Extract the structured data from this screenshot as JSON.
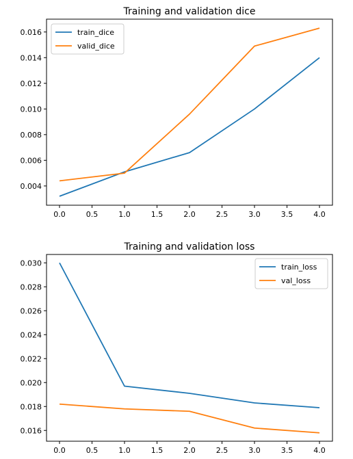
{
  "chart_data": [
    {
      "type": "line",
      "title": "Training and validation dice",
      "xlabel": "",
      "ylabel": "",
      "x": [
        0,
        1,
        2,
        3,
        4
      ],
      "xlim": [
        -0.2,
        4.2
      ],
      "ylim": [
        0.0025,
        0.017
      ],
      "xticks": [
        0.0,
        0.5,
        1.0,
        1.5,
        2.0,
        2.5,
        3.0,
        3.5,
        4.0
      ],
      "xtick_labels": [
        "0.0",
        "0.5",
        "1.0",
        "1.5",
        "2.0",
        "2.5",
        "3.0",
        "3.5",
        "4.0"
      ],
      "yticks": [
        0.004,
        0.006,
        0.008,
        0.01,
        0.012,
        0.014,
        0.016
      ],
      "ytick_labels": [
        "0.004",
        "0.006",
        "0.008",
        "0.010",
        "0.012",
        "0.014",
        "0.016"
      ],
      "grid": false,
      "legend_position": "top-left",
      "series": [
        {
          "name": "train_dice",
          "color": "#1f77b4",
          "values": [
            0.0032,
            0.0051,
            0.0066,
            0.01,
            0.014
          ]
        },
        {
          "name": "valid_dice",
          "color": "#ff7f0e",
          "values": [
            0.0044,
            0.005,
            0.0096,
            0.0149,
            0.0163
          ]
        }
      ]
    },
    {
      "type": "line",
      "title": "Training and validation loss",
      "xlabel": "",
      "ylabel": "",
      "x": [
        0,
        1,
        2,
        3,
        4
      ],
      "xlim": [
        -0.2,
        4.2
      ],
      "ylim": [
        0.0151,
        0.0307
      ],
      "xticks": [
        0.0,
        0.5,
        1.0,
        1.5,
        2.0,
        2.5,
        3.0,
        3.5,
        4.0
      ],
      "xtick_labels": [
        "0.0",
        "0.5",
        "1.0",
        "1.5",
        "2.0",
        "2.5",
        "3.0",
        "3.5",
        "4.0"
      ],
      "yticks": [
        0.016,
        0.018,
        0.02,
        0.022,
        0.024,
        0.026,
        0.028,
        0.03
      ],
      "ytick_labels": [
        "0.016",
        "0.018",
        "0.020",
        "0.022",
        "0.024",
        "0.026",
        "0.028",
        "0.030"
      ],
      "grid": false,
      "legend_position": "top-right",
      "series": [
        {
          "name": "train_loss",
          "color": "#1f77b4",
          "values": [
            0.03,
            0.0197,
            0.0191,
            0.0183,
            0.0179
          ]
        },
        {
          "name": "val_loss",
          "color": "#ff7f0e",
          "values": [
            0.0182,
            0.0178,
            0.0176,
            0.0162,
            0.0158
          ]
        }
      ]
    }
  ]
}
